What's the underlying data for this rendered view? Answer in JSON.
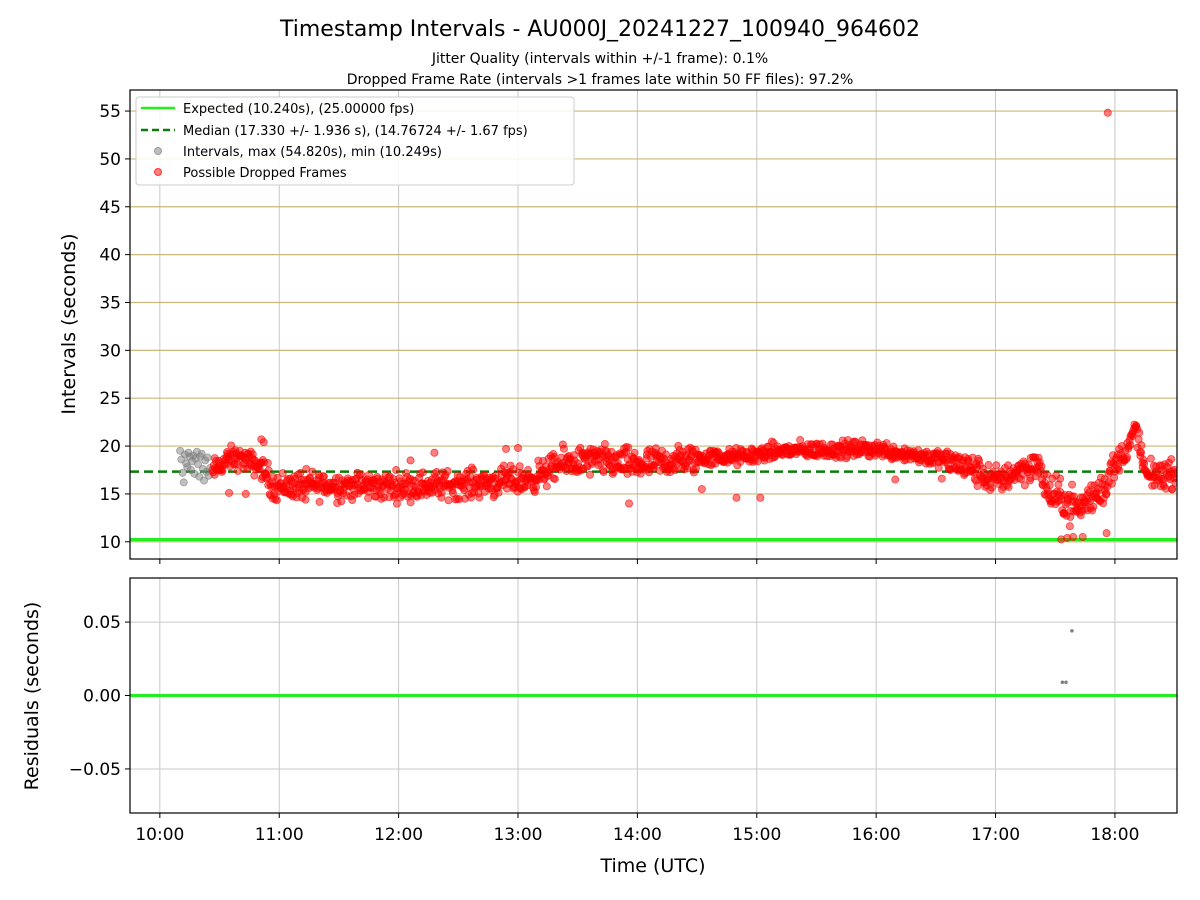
{
  "chart_data": [
    {
      "type": "scatter",
      "title": "Timestamp Intervals - AU000J_20241227_100940_964602",
      "subtitle_1": "Jitter Quality (intervals within +/-1 frame): 0.1%",
      "subtitle_2": "Dropped Frame Rate (intervals >1 frames late within 50 FF files): 97.2%",
      "ylabel": "Intervals (seconds)",
      "xlim": [
        9.75,
        18.52
      ],
      "ylim": [
        8.2,
        57.2
      ],
      "y_ticks": [
        "10",
        "15",
        "20",
        "25",
        "30",
        "35",
        "40",
        "45",
        "50",
        "55"
      ],
      "grid": "on",
      "legend_position": "upper-left",
      "colors": {
        "expected": "#22ee22",
        "median": "#0a7d0a",
        "intervals": "#808080",
        "dropped": "#ff0000",
        "grid_y": "#c8b87a",
        "grid_x": "#c8c8c8"
      },
      "legend": {
        "expected": "Expected (10.240s), (25.00000 fps)",
        "median": "Median (17.330 +/- 1.936 s), (14.76724 +/- 1.67 fps)",
        "intervals": "Intervals, max (54.820s), min (10.249s)",
        "dropped": "Possible Dropped Frames"
      },
      "expected_value": 10.24,
      "median_value": 17.33,
      "series": [
        {
          "name": "Intervals, max (54.820s), min (10.249s)",
          "points": [
            [
              10.17,
              19.5
            ],
            [
              10.18,
              18.6
            ],
            [
              10.19,
              17.2
            ],
            [
              10.2,
              16.2
            ],
            [
              10.21,
              19.1
            ],
            [
              10.22,
              18.2
            ],
            [
              10.23,
              17.8
            ],
            [
              10.24,
              19.3
            ],
            [
              10.25,
              18.9
            ],
            [
              10.26,
              17.5
            ],
            [
              10.27,
              18.4
            ],
            [
              10.28,
              19.0
            ],
            [
              10.29,
              17.1
            ],
            [
              10.3,
              18.7
            ],
            [
              10.31,
              19.4
            ],
            [
              10.32,
              18.1
            ],
            [
              10.33,
              16.8
            ],
            [
              10.34,
              18.9
            ],
            [
              10.35,
              19.2
            ],
            [
              10.36,
              17.6
            ],
            [
              10.37,
              16.4
            ],
            [
              10.38,
              18.5
            ],
            [
              10.39,
              17.3
            ],
            [
              10.4,
              18.8
            ],
            [
              10.41,
              16.9
            ],
            [
              10.42,
              17.7
            ]
          ]
        },
        {
          "name": "Possible Dropped Frames",
          "trend": [
            [
              10.45,
              17.5
            ],
            [
              10.6,
              18.8
            ],
            [
              10.7,
              18.6
            ],
            [
              10.85,
              17.8
            ],
            [
              10.95,
              15.8
            ],
            [
              11.3,
              15.9
            ],
            [
              11.8,
              15.8
            ],
            [
              12.3,
              15.9
            ],
            [
              12.8,
              16.2
            ],
            [
              13.1,
              16.5
            ],
            [
              13.4,
              18.3
            ],
            [
              13.7,
              18.5
            ],
            [
              14.0,
              18.0
            ],
            [
              14.3,
              18.4
            ],
            [
              14.6,
              18.8
            ],
            [
              14.9,
              18.9
            ],
            [
              15.2,
              19.5
            ],
            [
              15.6,
              19.6
            ],
            [
              16.0,
              19.7
            ],
            [
              16.3,
              19.1
            ],
            [
              16.6,
              18.5
            ],
            [
              16.8,
              17.6
            ],
            [
              17.0,
              16.3
            ],
            [
              17.2,
              17.5
            ],
            [
              17.35,
              18.0
            ],
            [
              17.45,
              15.0
            ],
            [
              17.55,
              14.5
            ],
            [
              17.7,
              13.5
            ],
            [
              17.8,
              14.5
            ],
            [
              17.92,
              16.0
            ],
            [
              18.0,
              18.0
            ],
            [
              18.12,
              20.0
            ],
            [
              18.18,
              22.0
            ],
            [
              18.25,
              17.0
            ],
            [
              18.52,
              17.0
            ]
          ],
          "outliers": [
            [
              17.94,
              54.82
            ],
            [
              17.93,
              10.9
            ],
            [
              17.55,
              10.25
            ],
            [
              17.6,
              10.4
            ],
            [
              17.65,
              10.5
            ],
            [
              17.73,
              10.5
            ],
            [
              10.72,
              15.0
            ],
            [
              10.58,
              15.1
            ],
            [
              14.83,
              14.6
            ],
            [
              15.03,
              14.6
            ],
            [
              13.93,
              14.0
            ],
            [
              14.54,
              15.5
            ],
            [
              16.16,
              16.5
            ],
            [
              16.55,
              16.6
            ],
            [
              11.22,
              14.4
            ],
            [
              12.1,
              18.5
            ],
            [
              12.3,
              19.3
            ],
            [
              13.0,
              19.8
            ],
            [
              12.9,
              19.7
            ],
            [
              10.85,
              20.7
            ],
            [
              10.87,
              20.4
            ]
          ]
        }
      ]
    },
    {
      "type": "scatter",
      "xlabel": "Time (UTC)",
      "ylabel": "Residuals (seconds)",
      "xlim": [
        9.75,
        18.52
      ],
      "ylim": [
        -0.08,
        0.08
      ],
      "y_ticks": [
        "0.05",
        "0.00",
        "−0.05"
      ],
      "x_ticks": [
        "10:00",
        "11:00",
        "12:00",
        "13:00",
        "14:00",
        "15:00",
        "16:00",
        "17:00",
        "18:00"
      ],
      "grid": "on",
      "colors": {
        "zero_line": "#22ee22",
        "points": "#808080",
        "grid": "#c8c8c8"
      },
      "points": [
        [
          17.56,
          0.009
        ],
        [
          17.59,
          0.009
        ],
        [
          17.64,
          0.044
        ]
      ]
    }
  ]
}
